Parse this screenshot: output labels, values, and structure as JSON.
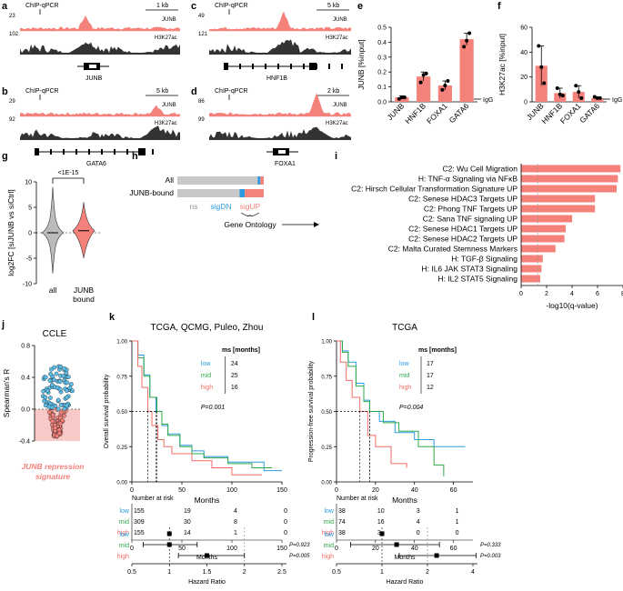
{
  "panels": {
    "a": "a",
    "b": "b",
    "c": "c",
    "d": "d",
    "e": "e",
    "f": "f",
    "g": "g",
    "h": "h",
    "i": "i",
    "j": "j",
    "k": "k",
    "l": "l"
  },
  "tracks": {
    "a": {
      "scale": "1 kb",
      "chip": "ChIP-qPCR",
      "junb_max": "23",
      "k27_max": "102",
      "junb": "JUNB",
      "k27": "H3K27ac",
      "gene": "JUNB"
    },
    "b": {
      "scale": "5 kb",
      "chip": "ChIP-qPCR",
      "junb_max": "29",
      "k27_max": "92",
      "junb": "JUNB",
      "k27": "H3K27ac",
      "gene": "GATA6"
    },
    "c": {
      "scale": "5 kb",
      "chip": "ChIP-qPCR",
      "junb_max": "49",
      "k27_max": "121",
      "junb": "JUNB",
      "k27": "H3K27ac",
      "gene": "HNF1B"
    },
    "d": {
      "scale": "2 kb",
      "chip": "ChIP-qPCR",
      "junb_max": "86",
      "k27_max": "99",
      "junb": "JUNB",
      "k27": "H3K27ac",
      "gene": "FOXA1"
    }
  },
  "colors": {
    "salmon": "#f4827b",
    "gray": "#c8c8c8",
    "blue": "#2b9be0",
    "green": "#2ea84a",
    "red": "#f06c66",
    "dark": "#333333"
  },
  "chart_data": [
    {
      "id": "e",
      "type": "bar",
      "ylabel": "JUNB [%input]",
      "ylim": [
        0,
        0.5
      ],
      "yticks": [
        "0.0",
        "0.1",
        "0.2",
        "0.3",
        "0.4",
        "0.5"
      ],
      "categories": [
        "JUNB",
        "HNF1B",
        "FOXA1",
        "GATA6"
      ],
      "values": [
        0.03,
        0.17,
        0.11,
        0.42
      ],
      "errors": [
        0.01,
        0.03,
        0.03,
        0.04
      ],
      "points": [
        [
          0.02,
          0.03,
          0.03
        ],
        [
          0.13,
          0.18,
          0.19
        ],
        [
          0.08,
          0.11,
          0.14
        ],
        [
          0.37,
          0.41,
          0.46
        ]
      ],
      "igg": "IgG"
    },
    {
      "id": "f",
      "type": "bar",
      "ylabel": "H3K27ac [%input]",
      "ylim": [
        0,
        60
      ],
      "yticks": [
        "0",
        "20",
        "40",
        "60"
      ],
      "categories": [
        "JUNB",
        "HNF1B",
        "FOXA1",
        "GATA6"
      ],
      "values": [
        29,
        7,
        8,
        3
      ],
      "errors": [
        16,
        4,
        5,
        1
      ],
      "points": [
        [
          45,
          28,
          15
        ],
        [
          11,
          6,
          5
        ],
        [
          13,
          8,
          3
        ],
        [
          4,
          3,
          3
        ]
      ],
      "igg": "IgG"
    },
    {
      "id": "g",
      "type": "violin",
      "ylabel": "log2FC [siJUNB vs siCtrl]",
      "ylim": [
        -10,
        10
      ],
      "yticks": [
        "10",
        "5",
        "0",
        "-5",
        "-10"
      ],
      "categories": [
        "all",
        "JUNB bound"
      ],
      "pvalue": "<1E-15"
    },
    {
      "id": "i",
      "type": "bar",
      "xlabel": "-log10(q-value)",
      "xlim": [
        0,
        8
      ],
      "xticks": [
        "0",
        "2",
        "4",
        "6",
        "8"
      ],
      "categories": [
        "C2: Wu Cell Migration",
        "H: TNF-α Signaling via NFκB",
        "C2: Hirsch Cellular Transformation Signature UP",
        "C2: Senese HDAC3 Targets UP",
        "C2: Phong TNF Targets UP",
        "C2: Sana TNF signaling UP",
        "C2: Senese HDAC1 Targets UP",
        "C2: Senese HDAC2 Targets UP",
        "C2: Malta Curated Stemness Markers",
        "H: TGF-β Signaling",
        "H: IL6 JAK STAT3 Signaling",
        "H: IL2 STAT5 Signaling"
      ],
      "values": [
        7.8,
        7.6,
        7.5,
        5.8,
        5.8,
        4.0,
        3.5,
        3.4,
        2.7,
        1.7,
        1.6,
        1.5
      ]
    },
    {
      "id": "j",
      "type": "scatter",
      "title": "CCLE",
      "ylabel": "Spearman's R",
      "ylim": [
        -0.4,
        0.8
      ],
      "yticks": [
        "0.8",
        "0.4",
        "0.0",
        "-0.4"
      ],
      "caption": "JUNB repression signature"
    },
    {
      "id": "k",
      "type": "line",
      "title": "TCGA, QCMG, Puleo, Zhou",
      "ylabel": "Overall survival probability",
      "xlabel": "Months",
      "xlim": [
        0,
        150
      ],
      "ylim": [
        0,
        1
      ],
      "xticks": [
        "0",
        "50",
        "100",
        "150"
      ],
      "yticks": [
        "0.00",
        "0.25",
        "0.50",
        "0.75",
        "1.00"
      ],
      "series": [
        {
          "name": "low",
          "median": 24,
          "x": [
            0,
            6,
            12,
            18,
            24,
            30,
            36,
            48,
            60,
            72,
            96,
            132,
            150
          ],
          "y": [
            1,
            0.9,
            0.76,
            0.6,
            0.5,
            0.4,
            0.34,
            0.26,
            0.22,
            0.18,
            0.14,
            0.08,
            0.08
          ]
        },
        {
          "name": "mid",
          "median": 25,
          "x": [
            0,
            6,
            12,
            18,
            25,
            30,
            36,
            48,
            60,
            72,
            96,
            120,
            140
          ],
          "y": [
            1,
            0.88,
            0.75,
            0.6,
            0.5,
            0.41,
            0.33,
            0.25,
            0.2,
            0.17,
            0.13,
            0.1,
            0.1
          ]
        },
        {
          "name": "high",
          "median": 16,
          "x": [
            0,
            6,
            10,
            16,
            20,
            26,
            32,
            40,
            60,
            80,
            100,
            130
          ],
          "y": [
            1,
            0.82,
            0.67,
            0.5,
            0.4,
            0.3,
            0.25,
            0.2,
            0.15,
            0.1,
            0.05,
            0.05
          ]
        }
      ],
      "ms_header": "ms [months]",
      "pvalue": "P=0.001",
      "risk": {
        "title": "Number at risk",
        "xticks": [
          "0",
          "50",
          "100",
          "150"
        ],
        "xlabel": "Months",
        "rows": [
          [
            "155",
            "19",
            "4",
            "0"
          ],
          [
            "309",
            "30",
            "8",
            "0"
          ],
          [
            "155",
            "14",
            "1",
            "0"
          ]
        ]
      },
      "hr": {
        "xlabel": "Hazard Ratio",
        "xticks": [
          "0.5",
          "1",
          "1.5",
          "2",
          "2.5"
        ],
        "points": [
          1.0,
          1.0,
          1.5
        ],
        "lo": [
          1.0,
          0.65,
          1.12
        ],
        "hi": [
          1.0,
          1.37,
          2.0
        ],
        "pvals": [
          "",
          "P=0.923",
          "P=0.005"
        ]
      }
    },
    {
      "id": "l",
      "type": "line",
      "title": "TCGA",
      "ylabel": "Progression-free survival probability",
      "xlabel": "Months",
      "xlim": [
        0,
        70
      ],
      "ylim": [
        0,
        1
      ],
      "xticks": [
        "0",
        "20",
        "40",
        "60"
      ],
      "yticks": [
        "0.00",
        "0.25",
        "0.50",
        "0.75",
        "1.00"
      ],
      "series": [
        {
          "name": "low",
          "median": 17,
          "x": [
            0,
            3,
            6,
            10,
            14,
            17,
            22,
            30,
            40,
            50,
            66
          ],
          "y": [
            1,
            0.93,
            0.85,
            0.7,
            0.58,
            0.5,
            0.43,
            0.35,
            0.3,
            0.25,
            0.25
          ]
        },
        {
          "name": "mid",
          "median": 17,
          "x": [
            0,
            3,
            6,
            10,
            14,
            17,
            24,
            32,
            42,
            50,
            55
          ],
          "y": [
            1,
            0.92,
            0.82,
            0.68,
            0.57,
            0.5,
            0.42,
            0.36,
            0.25,
            0.12,
            0.04
          ]
        },
        {
          "name": "high",
          "median": 12,
          "x": [
            0,
            2,
            5,
            8,
            12,
            16,
            20,
            28,
            36
          ],
          "y": [
            1,
            0.85,
            0.72,
            0.6,
            0.5,
            0.33,
            0.25,
            0.13,
            0.1
          ]
        }
      ],
      "ms_header": "ms [months]",
      "pvalue": "P=0.004",
      "risk": {
        "title": "Number at risk",
        "xticks": [
          "0",
          "20",
          "40",
          "60"
        ],
        "xlabel": "Months",
        "rows": [
          [
            "38",
            "10",
            "3",
            "1"
          ],
          [
            "74",
            "16",
            "4",
            "1"
          ],
          [
            "38",
            "3",
            "0",
            "0"
          ]
        ]
      },
      "hr": {
        "xlabel": "Hazard Ratio",
        "xticks": [
          "0.5",
          "1",
          "2",
          "4"
        ],
        "points": [
          1.0,
          1.25,
          2.3
        ],
        "lo": [
          1.0,
          0.62,
          1.3
        ],
        "hi": [
          1.0,
          2.4,
          4.2
        ],
        "pvals": [
          "",
          "P=0.333",
          "P=0.003"
        ]
      }
    }
  ],
  "hpanel": {
    "all": "All",
    "bound": "JUNB-bound",
    "ns": "ns",
    "sigdn": "sigDN",
    "sigup": "sigUP",
    "go": "Gene Ontology",
    "all_frac": [
      0.93,
      0.03,
      0.04
    ],
    "bound_frac": [
      0.72,
      0.06,
      0.22
    ]
  },
  "legend": {
    "low": "low",
    "mid": "mid",
    "high": "high"
  }
}
